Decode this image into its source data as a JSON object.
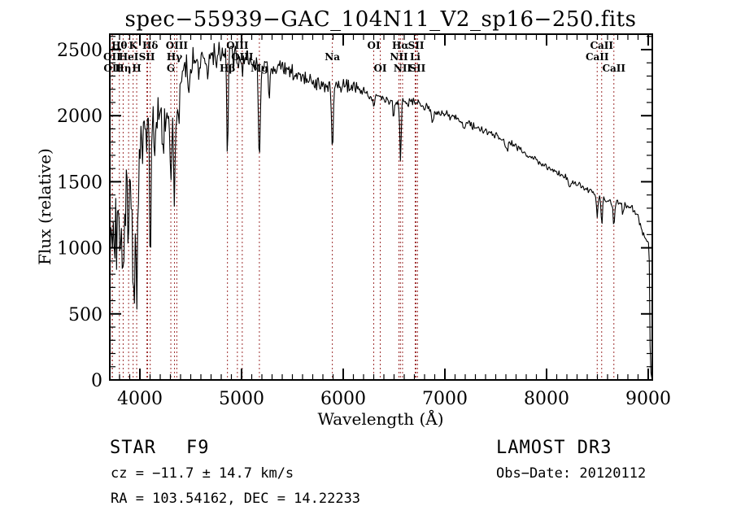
{
  "title": "spec−55939−GAC_104N11_V2_sp16−250.fits",
  "annotations": {
    "class_label": "STAR",
    "class_value": "F9",
    "cz_line": "cz = −11.7 ± 14.7 km/s",
    "radec_line": "RA = 103.54162, DEC =  14.22233",
    "release_line": "LAMOST DR3",
    "obsdate_line": "Obs−Date: 20120112"
  },
  "colors": {
    "spectrum": "#000000",
    "line_marker": "#9e3030",
    "frame": "#000000",
    "background": "#ffffff"
  },
  "chart_data": {
    "type": "line",
    "title": "spec−55939−GAC_104N11_V2_sp16−250.fits",
    "xlabel": "Wavelength (Å)",
    "ylabel": "Flux (relative)",
    "xlim": [
      3704,
      9040
    ],
    "ylim": [
      0,
      2500
    ],
    "x_major_ticks": [
      4000,
      5000,
      6000,
      7000,
      8000,
      9000
    ],
    "y_major_ticks": [
      0,
      500,
      1000,
      1500,
      2000,
      2500
    ],
    "x_minor_step": 100,
    "y_minor_step": 100,
    "grid": false,
    "legend": "none",
    "sample_step_angstrom": 8,
    "noise_seed": 7,
    "continuum": [
      [
        3704,
        1250
      ],
      [
        3725,
        1520
      ],
      [
        3750,
        1600
      ],
      [
        3775,
        1560
      ],
      [
        3800,
        1480
      ],
      [
        3830,
        1500
      ],
      [
        3860,
        1560
      ],
      [
        3900,
        1520
      ],
      [
        3935,
        1470
      ],
      [
        3970,
        1560
      ],
      [
        4000,
        1800
      ],
      [
        4040,
        1950
      ],
      [
        4080,
        2020
      ],
      [
        4120,
        1990
      ],
      [
        4160,
        1965
      ],
      [
        4200,
        2000
      ],
      [
        4250,
        1975
      ],
      [
        4300,
        1920
      ],
      [
        4360,
        2140
      ],
      [
        4420,
        2300
      ],
      [
        4500,
        2400
      ],
      [
        4600,
        2390
      ],
      [
        4700,
        2445
      ],
      [
        4800,
        2470
      ],
      [
        4900,
        2480
      ],
      [
        5000,
        2435
      ],
      [
        5100,
        2405
      ],
      [
        5200,
        2370
      ],
      [
        5300,
        2345
      ],
      [
        5400,
        2345
      ],
      [
        5500,
        2315
      ],
      [
        5600,
        2290
      ],
      [
        5700,
        2255
      ],
      [
        5800,
        2225
      ],
      [
        5900,
        2195
      ],
      [
        6000,
        2235
      ],
      [
        6100,
        2215
      ],
      [
        6200,
        2185
      ],
      [
        6300,
        2145
      ],
      [
        6400,
        2115
      ],
      [
        6500,
        2105
      ],
      [
        6600,
        2105
      ],
      [
        6700,
        2095
      ],
      [
        6800,
        2065
      ],
      [
        6900,
        2035
      ],
      [
        7000,
        2010
      ],
      [
        7100,
        1985
      ],
      [
        7200,
        1950
      ],
      [
        7300,
        1910
      ],
      [
        7400,
        1880
      ],
      [
        7500,
        1850
      ],
      [
        7600,
        1820
      ],
      [
        7700,
        1762
      ],
      [
        7800,
        1708
      ],
      [
        7900,
        1662
      ],
      [
        8000,
        1618
      ],
      [
        8100,
        1572
      ],
      [
        8200,
        1528
      ],
      [
        8300,
        1482
      ],
      [
        8400,
        1440
      ],
      [
        8500,
        1400
      ],
      [
        8600,
        1352
      ],
      [
        8700,
        1342
      ],
      [
        8800,
        1332
      ],
      [
        8850,
        1300
      ],
      [
        8900,
        1232
      ],
      [
        8940,
        1125
      ],
      [
        8970,
        1065
      ],
      [
        9000,
        1042
      ],
      [
        9008,
        1032
      ],
      [
        9014,
        620
      ],
      [
        9020,
        90
      ],
      [
        9030,
        28
      ],
      [
        9038,
        18
      ]
    ],
    "noise_sigma": [
      [
        3704,
        340
      ],
      [
        3800,
        310
      ],
      [
        3900,
        290
      ],
      [
        3980,
        180
      ],
      [
        4100,
        125
      ],
      [
        4300,
        110
      ],
      [
        4500,
        95
      ],
      [
        4800,
        85
      ],
      [
        5100,
        68
      ],
      [
        5400,
        58
      ],
      [
        5700,
        48
      ],
      [
        6000,
        40
      ],
      [
        6300,
        35
      ],
      [
        6600,
        31
      ],
      [
        7000,
        27
      ],
      [
        7500,
        24
      ],
      [
        8000,
        21
      ],
      [
        8500,
        19
      ],
      [
        8800,
        23
      ],
      [
        8950,
        26
      ],
      [
        9005,
        18
      ],
      [
        9040,
        6
      ]
    ],
    "absorption_features": [
      {
        "wavelength": 3712,
        "depth": 350,
        "width": 6
      },
      {
        "wavelength": 3727,
        "depth": 300,
        "width": 6
      },
      {
        "wavelength": 3734,
        "depth": 460,
        "width": 6
      },
      {
        "wavelength": 3750,
        "depth": 520,
        "width": 7
      },
      {
        "wavelength": 3771,
        "depth": 560,
        "width": 7
      },
      {
        "wavelength": 3798,
        "depth": 680,
        "width": 8
      },
      {
        "wavelength": 3820,
        "depth": 400,
        "width": 6
      },
      {
        "wavelength": 3835,
        "depth": 720,
        "width": 8
      },
      {
        "wavelength": 3860,
        "depth": 350,
        "width": 6
      },
      {
        "wavelength": 3889,
        "depth": 770,
        "width": 8
      },
      {
        "wavelength": 3934,
        "depth": 980,
        "width": 9
      },
      {
        "wavelength": 3969,
        "depth": 900,
        "width": 9
      },
      {
        "wavelength": 4026,
        "depth": 260,
        "width": 6
      },
      {
        "wavelength": 4068,
        "depth": 210,
        "width": 5
      },
      {
        "wavelength": 4102,
        "depth": 1330,
        "width": 6
      },
      {
        "wavelength": 4144,
        "depth": 260,
        "width": 6
      },
      {
        "wavelength": 4227,
        "depth": 290,
        "width": 6
      },
      {
        "wavelength": 4305,
        "depth": 390,
        "width": 9
      },
      {
        "wavelength": 4340,
        "depth": 830,
        "width": 7
      },
      {
        "wavelength": 4363,
        "depth": 130,
        "width": 5
      },
      {
        "wavelength": 4384,
        "depth": 260,
        "width": 6
      },
      {
        "wavelength": 4481,
        "depth": 190,
        "width": 5
      },
      {
        "wavelength": 4668,
        "depth": 190,
        "width": 6
      },
      {
        "wavelength": 4861,
        "depth": 800,
        "width": 7
      },
      {
        "wavelength": 4921,
        "depth": 160,
        "width": 5
      },
      {
        "wavelength": 5007,
        "depth": 110,
        "width": 5
      },
      {
        "wavelength": 5175,
        "depth": 690,
        "width": 9
      },
      {
        "wavelength": 5270,
        "depth": 230,
        "width": 8
      },
      {
        "wavelength": 5893,
        "depth": 445,
        "width": 8
      },
      {
        "wavelength": 6300,
        "depth": 95,
        "width": 5
      },
      {
        "wavelength": 6495,
        "depth": 130,
        "width": 7
      },
      {
        "wavelength": 6563,
        "depth": 455,
        "width": 7
      },
      {
        "wavelength": 6875,
        "depth": 95,
        "width": 10
      },
      {
        "wavelength": 7186,
        "depth": 65,
        "width": 10
      },
      {
        "wavelength": 7605,
        "depth": 85,
        "width": 12
      },
      {
        "wavelength": 8227,
        "depth": 65,
        "width": 8
      },
      {
        "wavelength": 8498,
        "depth": 175,
        "width": 7
      },
      {
        "wavelength": 8542,
        "depth": 205,
        "width": 7
      },
      {
        "wavelength": 8662,
        "depth": 185,
        "width": 7
      },
      {
        "wavelength": 8750,
        "depth": 95,
        "width": 7
      }
    ],
    "marked_lines": [
      {
        "label": "OII",
        "wavelength": 3727.1,
        "row": 2
      },
      {
        "label": "OII",
        "wavelength": 3729.9,
        "row": 3
      },
      {
        "label": "Hθ",
        "wavelength": 3798.0,
        "row": 1
      },
      {
        "label": "Hη",
        "wavelength": 3835.4,
        "row": 3
      },
      {
        "label": "HeI",
        "wavelength": 3889.0,
        "row": 2
      },
      {
        "label": "K",
        "wavelength": 3933.7,
        "row": 1
      },
      {
        "label": "H",
        "wavelength": 3968.5,
        "row": 3
      },
      {
        "label": "SII",
        "wavelength": 4068.6,
        "row": 2
      },
      {
        "label": "",
        "wavelength": 4076.2,
        "row": 2
      },
      {
        "label": "Hδ",
        "wavelength": 4101.7,
        "row": 1
      },
      {
        "label": "G",
        "wavelength": 4304.4,
        "row": 3
      },
      {
        "label": "Hγ",
        "wavelength": 4340.5,
        "row": 2
      },
      {
        "label": "OIII",
        "wavelength": 4363.2,
        "row": 1
      },
      {
        "label": "Hβ",
        "wavelength": 4861.3,
        "row": 3
      },
      {
        "label": "OIII",
        "wavelength": 4958.9,
        "row": 1
      },
      {
        "label": "OIII",
        "wavelength": 5006.8,
        "row": 2
      },
      {
        "label": "Mg",
        "wavelength": 5175.3,
        "row": 3
      },
      {
        "label": "Na",
        "wavelength": 5893.0,
        "row": 2
      },
      {
        "label": "OI",
        "wavelength": 6300.2,
        "row": 1
      },
      {
        "label": "OI",
        "wavelength": 6363.9,
        "row": 3
      },
      {
        "label": "NII",
        "wavelength": 6548.1,
        "row": 2
      },
      {
        "label": "Hα",
        "wavelength": 6562.8,
        "row": 1
      },
      {
        "label": "NII",
        "wavelength": 6583.6,
        "row": 3
      },
      {
        "label": "Li",
        "wavelength": 6707.8,
        "row": 2
      },
      {
        "label": "SII",
        "wavelength": 6716.4,
        "row": 1
      },
      {
        "label": "SII",
        "wavelength": 6730.8,
        "row": 3
      },
      {
        "label": "CaII",
        "wavelength": 8498.0,
        "row": 2
      },
      {
        "label": "CaII",
        "wavelength": 8542.1,
        "row": 1
      },
      {
        "label": "CaII",
        "wavelength": 8662.1,
        "row": 3
      }
    ]
  }
}
